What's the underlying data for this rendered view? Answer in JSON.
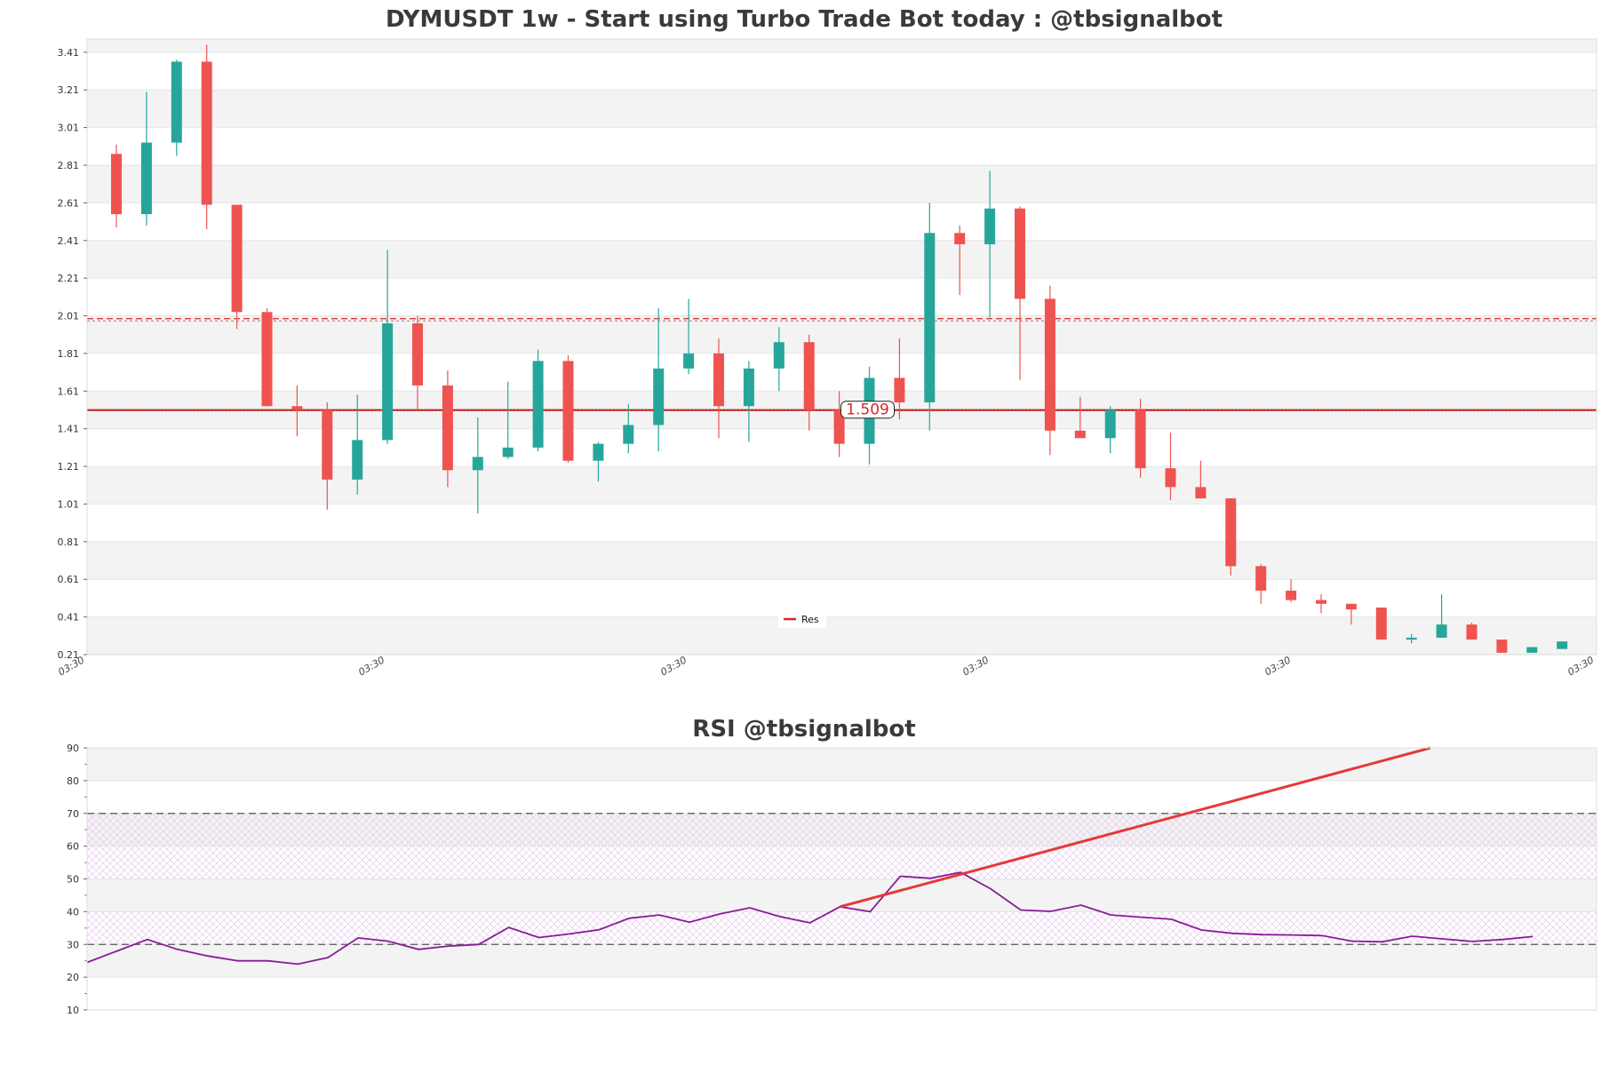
{
  "chart_data": [
    {
      "type": "candlestick",
      "title": "DYMUSDT 1w - Start using Turbo Trade Bot today : @tbsignalbot",
      "ylim": [
        0.21,
        3.48
      ],
      "y_ticks": [
        "0.21",
        "0.41",
        "0.61",
        "0.81",
        "1.01",
        "1.21",
        "1.41",
        "1.61",
        "1.81",
        "2.01",
        "2.21",
        "2.41",
        "2.61",
        "2.81",
        "3.01",
        "3.21",
        "3.41"
      ],
      "x_tick_labels": [
        "03:30",
        "03:30",
        "03:30",
        "03:30",
        "03:30",
        "03:30"
      ],
      "legend": {
        "placement": "bottom-center",
        "entries": [
          {
            "name": "Res",
            "color": "#d62728"
          }
        ]
      },
      "horizontal_lines": [
        {
          "value": 1.99,
          "style": "dashed",
          "color": "#d62728"
        },
        {
          "value": 1.509,
          "style": "solid",
          "color": "#d62728"
        }
      ],
      "annotation": {
        "text": "1.509",
        "value": 1.509,
        "candle_index": 25
      },
      "colors": {
        "up": "#26a69a",
        "down": "#ef5350"
      },
      "candles": [
        {
          "o": 2.87,
          "h": 2.92,
          "l": 2.48,
          "c": 2.55
        },
        {
          "o": 2.55,
          "h": 3.2,
          "l": 2.49,
          "c": 2.93
        },
        {
          "o": 2.93,
          "h": 3.37,
          "l": 2.86,
          "c": 3.36
        },
        {
          "o": 3.36,
          "h": 3.45,
          "l": 2.47,
          "c": 2.6
        },
        {
          "o": 2.6,
          "h": 2.6,
          "l": 1.94,
          "c": 2.03
        },
        {
          "o": 2.03,
          "h": 2.05,
          "l": 1.53,
          "c": 1.53
        },
        {
          "o": 1.53,
          "h": 1.64,
          "l": 1.37,
          "c": 1.51
        },
        {
          "o": 1.51,
          "h": 1.55,
          "l": 0.98,
          "c": 1.14
        },
        {
          "o": 1.14,
          "h": 1.59,
          "l": 1.06,
          "c": 1.35
        },
        {
          "o": 1.35,
          "h": 2.36,
          "l": 1.33,
          "c": 1.97
        },
        {
          "o": 1.97,
          "h": 2.01,
          "l": 1.51,
          "c": 1.64
        },
        {
          "o": 1.64,
          "h": 1.72,
          "l": 1.1,
          "c": 1.19
        },
        {
          "o": 1.19,
          "h": 1.47,
          "l": 0.96,
          "c": 1.26
        },
        {
          "o": 1.26,
          "h": 1.66,
          "l": 1.25,
          "c": 1.31
        },
        {
          "o": 1.31,
          "h": 1.83,
          "l": 1.29,
          "c": 1.77
        },
        {
          "o": 1.77,
          "h": 1.8,
          "l": 1.23,
          "c": 1.24
        },
        {
          "o": 1.24,
          "h": 1.34,
          "l": 1.13,
          "c": 1.33
        },
        {
          "o": 1.33,
          "h": 1.54,
          "l": 1.28,
          "c": 1.43
        },
        {
          "o": 1.43,
          "h": 2.05,
          "l": 1.29,
          "c": 1.73
        },
        {
          "o": 1.73,
          "h": 2.1,
          "l": 1.7,
          "c": 1.81
        },
        {
          "o": 1.81,
          "h": 1.89,
          "l": 1.36,
          "c": 1.53
        },
        {
          "o": 1.53,
          "h": 1.77,
          "l": 1.34,
          "c": 1.73
        },
        {
          "o": 1.73,
          "h": 1.95,
          "l": 1.61,
          "c": 1.87
        },
        {
          "o": 1.87,
          "h": 1.91,
          "l": 1.4,
          "c": 1.51
        },
        {
          "o": 1.51,
          "h": 1.61,
          "l": 1.26,
          "c": 1.33
        },
        {
          "o": 1.33,
          "h": 1.74,
          "l": 1.22,
          "c": 1.68
        },
        {
          "o": 1.68,
          "h": 1.89,
          "l": 1.46,
          "c": 1.55
        },
        {
          "o": 1.55,
          "h": 2.61,
          "l": 1.4,
          "c": 2.45
        },
        {
          "o": 2.45,
          "h": 2.49,
          "l": 2.12,
          "c": 2.39
        },
        {
          "o": 2.39,
          "h": 2.78,
          "l": 2.0,
          "c": 2.58
        },
        {
          "o": 2.58,
          "h": 2.59,
          "l": 1.67,
          "c": 2.1
        },
        {
          "o": 2.1,
          "h": 2.17,
          "l": 1.27,
          "c": 1.4
        },
        {
          "o": 1.4,
          "h": 1.58,
          "l": 1.37,
          "c": 1.36
        },
        {
          "o": 1.36,
          "h": 1.53,
          "l": 1.28,
          "c": 1.51
        },
        {
          "o": 1.51,
          "h": 1.57,
          "l": 1.15,
          "c": 1.2
        },
        {
          "o": 1.2,
          "h": 1.39,
          "l": 1.03,
          "c": 1.1
        },
        {
          "o": 1.1,
          "h": 1.24,
          "l": 1.04,
          "c": 1.04
        },
        {
          "o": 1.04,
          "h": 1.04,
          "l": 0.63,
          "c": 0.68
        },
        {
          "o": 0.68,
          "h": 0.69,
          "l": 0.48,
          "c": 0.55
        },
        {
          "o": 0.55,
          "h": 0.61,
          "l": 0.49,
          "c": 0.5
        },
        {
          "o": 0.5,
          "h": 0.53,
          "l": 0.43,
          "c": 0.48
        },
        {
          "o": 0.48,
          "h": 0.48,
          "l": 0.37,
          "c": 0.45
        },
        {
          "o": 0.46,
          "h": 0.46,
          "l": 0.29,
          "c": 0.29
        },
        {
          "o": 0.29,
          "h": 0.32,
          "l": 0.27,
          "c": 0.3
        },
        {
          "o": 0.3,
          "h": 0.53,
          "l": 0.3,
          "c": 0.37
        },
        {
          "o": 0.37,
          "h": 0.38,
          "l": 0.29,
          "c": 0.29
        },
        {
          "o": 0.29,
          "h": 0.29,
          "l": 0.22,
          "c": 0.22
        },
        {
          "o": 0.22,
          "h": 0.25,
          "l": 0.22,
          "c": 0.25
        },
        {
          "o": 0.24,
          "h": 0.28,
          "l": 0.24,
          "c": 0.28
        }
      ]
    },
    {
      "type": "line",
      "title": "RSI @tbsignalbot",
      "ylim": [
        10,
        90
      ],
      "y_ticks": [
        "10",
        "20",
        "30",
        "40",
        "50",
        "60",
        "70",
        "80",
        "90"
      ],
      "reference_lines": [
        30,
        70
      ],
      "series": [
        {
          "color": "#8b1a9a",
          "values": [
            24.5,
            28,
            31.5,
            28.5,
            26.5,
            25,
            25,
            24,
            26,
            32,
            31,
            28.5,
            29.5,
            30,
            35.2,
            32.1,
            33.2,
            34.5,
            38,
            39,
            36.8,
            39.3,
            41.2,
            38.5,
            36.6,
            41.5,
            40,
            50.8,
            50.2,
            52,
            47,
            40.5,
            40.1,
            42,
            39,
            38.3,
            37.7,
            34.4,
            33.4,
            33,
            32.9,
            32.7,
            31,
            30.8,
            32.5,
            31.7,
            30.9,
            31.5,
            32.4
          ]
        }
      ],
      "trendline": {
        "color": "#e53935",
        "from": {
          "index": 25,
          "value": 41.5
        },
        "to": {
          "index": 44.6,
          "value": 90
        }
      },
      "bands": [
        {
          "from": 30,
          "to": 40,
          "hatch": "#e7c4ee"
        },
        {
          "from": 50,
          "to": 70,
          "hatch": "#e7c4ee"
        }
      ]
    }
  ]
}
